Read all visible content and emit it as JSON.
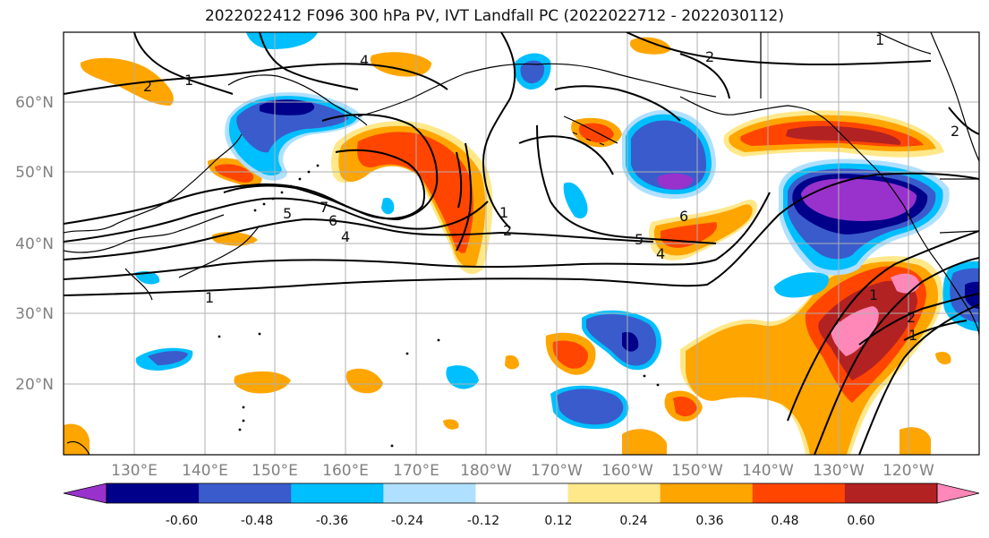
{
  "title": "2022022412 F096 300 hPa PV, IVT Landfall PC (2022022712 - 2022030112)",
  "map": {
    "lat_labels": [
      "60°N",
      "50°N",
      "40°N",
      "30°N",
      "20°N"
    ],
    "lon_labels": [
      "130°E",
      "140°E",
      "150°E",
      "160°E",
      "170°E",
      "180°W",
      "170°W",
      "160°W",
      "150°W",
      "140°W",
      "130°W",
      "120°W"
    ],
    "lat_range": [
      10,
      70
    ],
    "lon_range": [
      120,
      250
    ],
    "grid": true,
    "contour_labels": [
      "1",
      "2",
      "4",
      "1",
      "5",
      "7",
      "6",
      "4",
      "1",
      "2",
      "6",
      "5",
      "4",
      "2",
      "2",
      "1",
      "1",
      "1",
      "2"
    ]
  },
  "colorbar": {
    "levels": [
      "-0.60",
      "-0.48",
      "-0.36",
      "-0.24",
      "-0.12",
      "0.12",
      "0.24",
      "0.36",
      "0.48",
      "0.60"
    ],
    "colors": [
      "#9932CC",
      "#00008B",
      "#3A5BCC",
      "#00BFFF",
      "#B0E0FF",
      "#FFFFFF",
      "#FFE88A",
      "#FFA500",
      "#FF4500",
      "#B22222",
      "#FF88B8"
    ]
  }
}
